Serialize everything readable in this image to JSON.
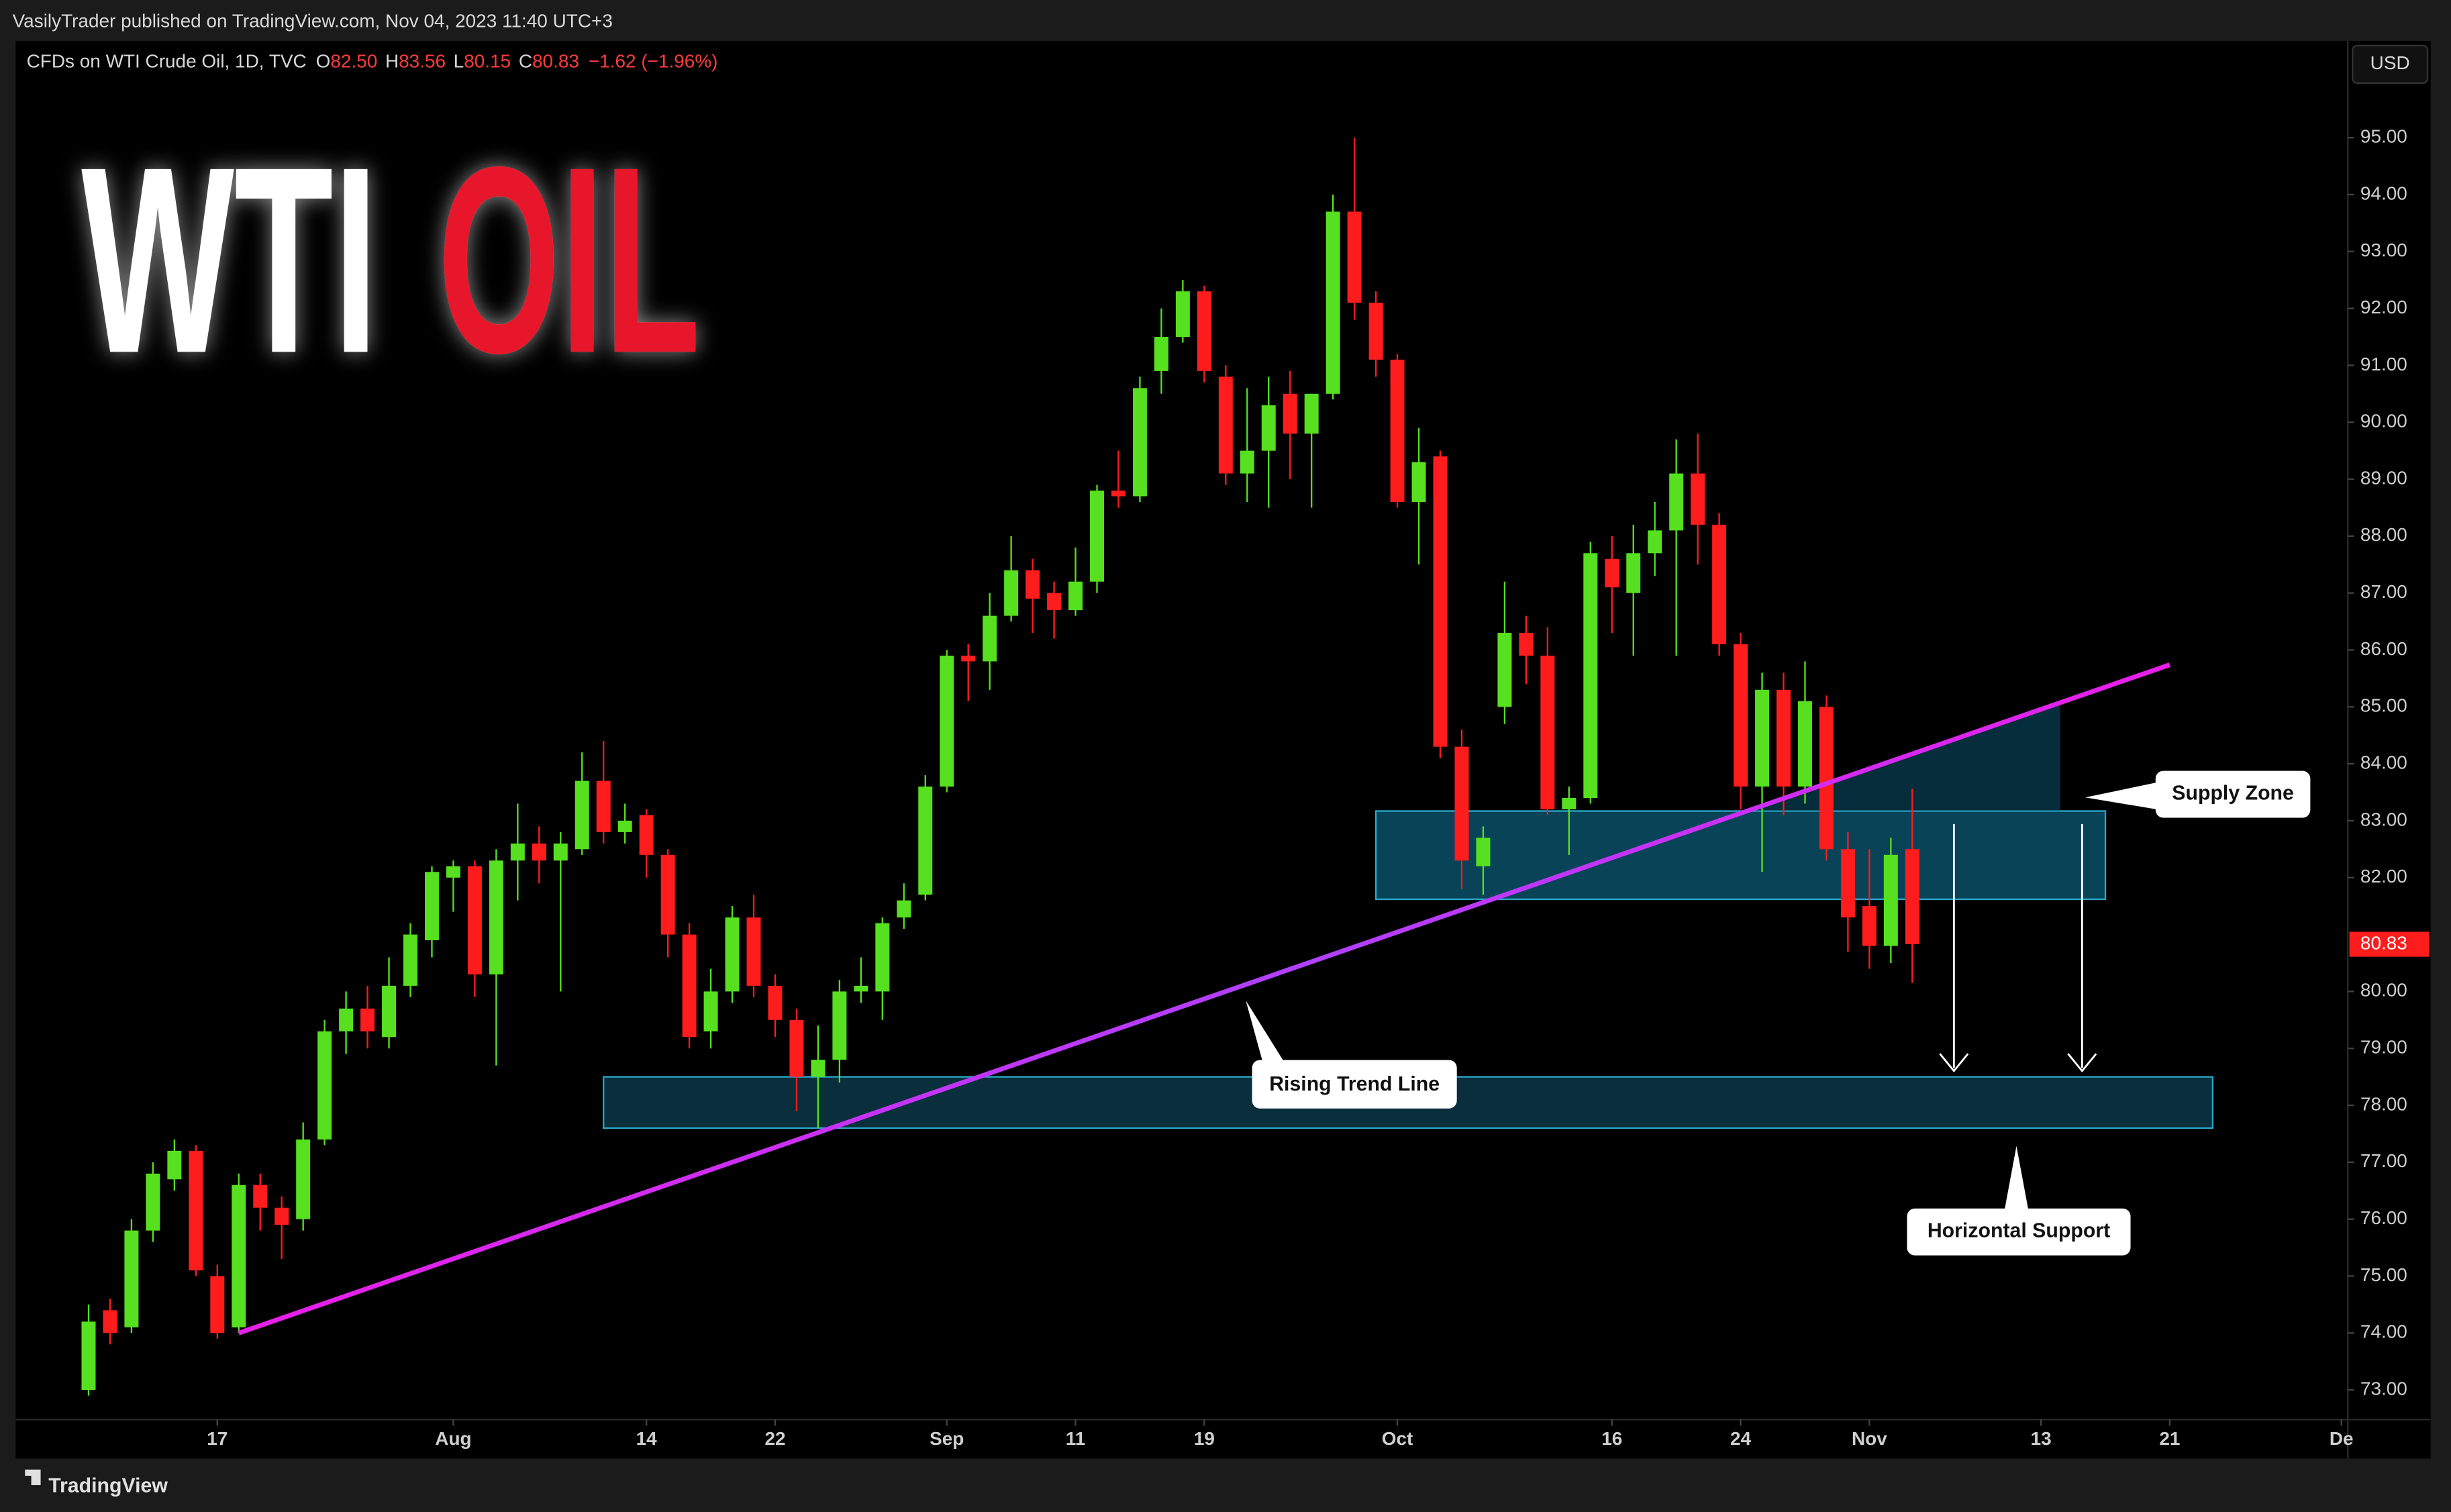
{
  "header": {
    "publisher": "VasilyTrader published on TradingView.com, Nov 04, 2023 11:40 UTC+3",
    "symbol": "CFDs on WTI Crude Oil, 1D, TVC",
    "ohlc": [
      {
        "key": "O",
        "value": "82.50"
      },
      {
        "key": "H",
        "value": "83.56"
      },
      {
        "key": "L",
        "value": "80.15"
      },
      {
        "key": "C",
        "value": "80.83"
      }
    ],
    "change": "−1.62 (−1.96%)",
    "currency": "USD"
  },
  "overlay_title": [
    "WTI",
    "OIL"
  ],
  "chart_data": {
    "type": "candlestick",
    "up_color": "#56e01f",
    "down_color": "#ff1c1c",
    "xlim": [
      -3.4,
      105.3
    ],
    "xticks": [
      {
        "value": 6,
        "label": "17"
      },
      {
        "value": 17,
        "label": "Aug"
      },
      {
        "value": 26,
        "label": "14"
      },
      {
        "value": 32,
        "label": "22"
      },
      {
        "value": 40,
        "label": "Sep"
      },
      {
        "value": 46,
        "label": "11"
      },
      {
        "value": 52,
        "label": "19"
      },
      {
        "value": 61,
        "label": "Oct"
      },
      {
        "value": 71,
        "label": "16"
      },
      {
        "value": 77,
        "label": "24"
      },
      {
        "value": 83,
        "label": "Nov"
      },
      {
        "value": 91,
        "label": "13"
      },
      {
        "value": 97,
        "label": "21"
      },
      {
        "value": 105,
        "label": "De"
      }
    ],
    "ylim": [
      72.48,
      96.7
    ],
    "yticks": [
      {
        "value": 73,
        "label": "73.00"
      },
      {
        "value": 74,
        "label": "74.00"
      },
      {
        "value": 75,
        "label": "75.00"
      },
      {
        "value": 76,
        "label": "76.00"
      },
      {
        "value": 77,
        "label": "77.00"
      },
      {
        "value": 78,
        "label": "78.00"
      },
      {
        "value": 79,
        "label": "79.00"
      },
      {
        "value": 80,
        "label": "80.00"
      },
      {
        "value": 82,
        "label": "82.00"
      },
      {
        "value": 83,
        "label": "83.00"
      },
      {
        "value": 84,
        "label": "84.00"
      },
      {
        "value": 85,
        "label": "85.00"
      },
      {
        "value": 86,
        "label": "86.00"
      },
      {
        "value": 87,
        "label": "87.00"
      },
      {
        "value": 88,
        "label": "88.00"
      },
      {
        "value": 89,
        "label": "89.00"
      },
      {
        "value": 90,
        "label": "90.00"
      },
      {
        "value": 91,
        "label": "91.00"
      },
      {
        "value": 92,
        "label": "92.00"
      },
      {
        "value": 93,
        "label": "93.00"
      },
      {
        "value": 94,
        "label": "94.00"
      },
      {
        "value": 95,
        "label": "95.00"
      }
    ],
    "open": [
      73.0,
      74.4,
      74.1,
      75.8,
      76.7,
      77.2,
      75.0,
      74.1,
      76.6,
      76.2,
      76.0,
      77.4,
      79.3,
      79.7,
      79.2,
      80.1,
      80.9,
      82.0,
      82.2,
      80.3,
      82.3,
      82.6,
      82.3,
      82.5,
      83.7,
      82.8,
      83.1,
      82.4,
      81.0,
      79.3,
      80.0,
      81.3,
      80.1,
      79.5,
      78.5,
      78.8,
      80.0,
      80.0,
      81.3,
      81.7,
      83.6,
      85.9,
      85.8,
      86.6,
      87.4,
      87.0,
      86.7,
      87.2,
      88.8,
      88.7,
      90.9,
      91.5,
      92.3,
      90.8,
      89.1,
      89.5,
      90.5,
      89.8,
      90.5,
      93.7,
      92.1,
      91.1,
      88.6,
      89.4,
      84.3,
      82.2,
      85.0,
      86.3,
      85.9,
      83.2,
      83.4,
      87.6,
      87.0,
      87.7,
      88.1,
      89.1,
      88.2,
      86.1,
      83.6,
      85.3,
      83.6,
      85.0,
      82.5,
      81.5,
      80.8,
      82.5
    ],
    "high": [
      74.5,
      74.6,
      76.0,
      77.0,
      77.4,
      77.3,
      75.2,
      76.8,
      76.8,
      76.4,
      77.7,
      79.5,
      80.0,
      80.1,
      80.6,
      81.2,
      82.2,
      82.3,
      82.3,
      82.5,
      83.3,
      82.9,
      82.8,
      84.2,
      84.4,
      83.3,
      83.2,
      82.5,
      81.2,
      80.4,
      81.5,
      81.7,
      80.3,
      79.7,
      79.4,
      80.2,
      80.6,
      81.3,
      81.9,
      83.8,
      86.0,
      86.1,
      87.0,
      88.0,
      87.6,
      87.2,
      87.8,
      88.9,
      89.5,
      90.8,
      92.0,
      92.5,
      92.4,
      91.0,
      90.6,
      90.8,
      90.9,
      90.5,
      94.0,
      95.0,
      92.3,
      91.2,
      89.9,
      89.5,
      84.6,
      82.9,
      87.2,
      86.6,
      86.4,
      83.6,
      87.9,
      88.0,
      88.2,
      88.6,
      89.7,
      89.8,
      88.4,
      86.3,
      85.6,
      85.6,
      85.8,
      85.2,
      82.8,
      82.5,
      82.7,
      83.56
    ],
    "low": [
      72.9,
      73.8,
      74.0,
      75.6,
      76.5,
      75.0,
      73.9,
      74.0,
      75.8,
      75.3,
      75.8,
      77.3,
      78.9,
      79.0,
      79.0,
      79.9,
      80.6,
      81.4,
      79.9,
      78.7,
      81.6,
      81.9,
      80.0,
      82.4,
      82.6,
      82.6,
      82.0,
      80.6,
      79.0,
      79.0,
      79.8,
      79.9,
      79.2,
      77.9,
      77.6,
      78.4,
      79.8,
      79.5,
      81.1,
      81.6,
      83.5,
      85.1,
      85.3,
      86.5,
      86.3,
      86.2,
      86.6,
      87.0,
      88.5,
      88.6,
      90.5,
      91.4,
      90.7,
      88.9,
      88.6,
      88.5,
      89.0,
      88.5,
      90.4,
      91.8,
      90.8,
      88.5,
      87.5,
      84.1,
      81.8,
      81.7,
      84.7,
      85.4,
      83.1,
      82.4,
      83.3,
      86.3,
      85.9,
      87.3,
      85.9,
      87.5,
      85.9,
      83.2,
      82.1,
      83.1,
      83.3,
      82.3,
      80.7,
      80.4,
      80.5,
      80.15
    ],
    "close": [
      74.2,
      74.0,
      75.8,
      76.8,
      77.2,
      75.1,
      74.0,
      76.6,
      76.2,
      75.9,
      77.4,
      79.3,
      79.7,
      79.3,
      80.1,
      81.0,
      82.1,
      82.2,
      80.3,
      82.3,
      82.6,
      82.3,
      82.6,
      83.7,
      82.8,
      83.0,
      82.4,
      81.0,
      79.2,
      80.0,
      81.3,
      80.1,
      79.5,
      78.5,
      78.8,
      80.0,
      80.1,
      81.2,
      81.6,
      83.6,
      85.9,
      85.8,
      86.6,
      87.4,
      86.9,
      86.7,
      87.2,
      88.8,
      88.7,
      90.6,
      91.5,
      92.3,
      90.9,
      89.1,
      89.5,
      90.3,
      89.8,
      90.5,
      93.7,
      92.1,
      91.1,
      88.6,
      89.3,
      84.3,
      82.3,
      82.7,
      86.3,
      85.9,
      83.2,
      83.4,
      87.7,
      87.1,
      87.7,
      88.1,
      89.1,
      88.2,
      86.1,
      83.6,
      85.3,
      83.6,
      85.1,
      82.5,
      81.3,
      80.8,
      82.4,
      80.83
    ],
    "last_price": {
      "value": 80.83,
      "label": "80.83"
    },
    "zones": [
      {
        "x": [
          60,
          94
        ],
        "y": [
          81.62,
          83.17
        ]
      },
      {
        "x": [
          24,
          99
        ],
        "y": [
          77.6,
          78.5
        ]
      }
    ],
    "trendline": {
      "x": [
        7,
        97
      ],
      "y": [
        74.0,
        85.74
      ]
    },
    "annotations": [
      "Supply Zone",
      "Rising Trend Line",
      "Horizontal Support"
    ]
  },
  "footer": "TradingView"
}
